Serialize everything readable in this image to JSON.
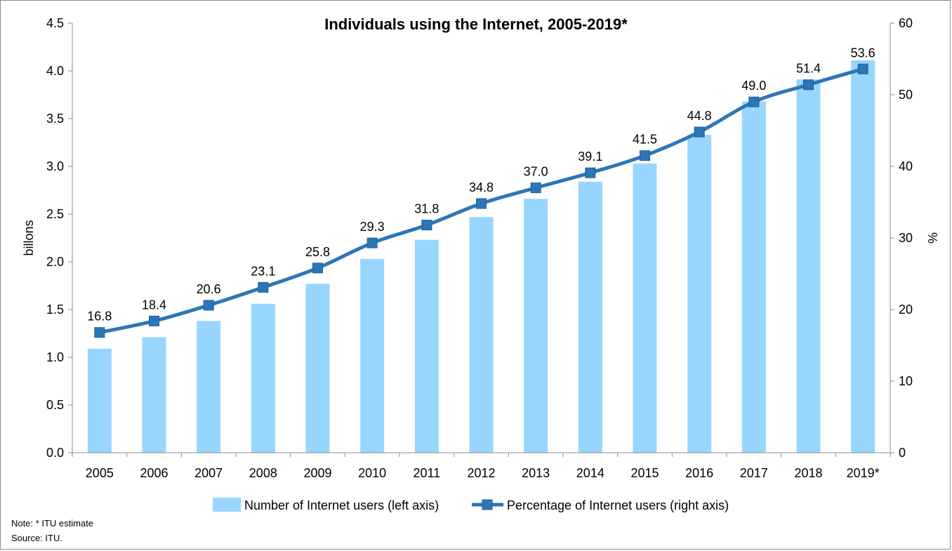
{
  "chart_data": {
    "type": "bar",
    "title": "Individuals using the Internet, 2005-2019*",
    "categories": [
      "2005",
      "2006",
      "2007",
      "2008",
      "2009",
      "2010",
      "2011",
      "2012",
      "2013",
      "2014",
      "2015",
      "2016",
      "2017",
      "2018",
      "2019*"
    ],
    "series": [
      {
        "name": "Number of Internet users (left axis)",
        "type": "bar",
        "axis": "left",
        "color": "#99d6ff",
        "values": [
          1.09,
          1.21,
          1.38,
          1.56,
          1.77,
          2.03,
          2.23,
          2.47,
          2.66,
          2.84,
          3.03,
          3.33,
          3.68,
          3.91,
          4.11
        ]
      },
      {
        "name": "Percentage of Internet users (right axis)",
        "type": "line",
        "axis": "right",
        "color": "#2e75b6",
        "marker": "square",
        "values": [
          16.8,
          18.4,
          20.6,
          23.1,
          25.8,
          29.3,
          31.8,
          34.8,
          37.0,
          39.1,
          41.5,
          44.8,
          49.0,
          51.4,
          53.6
        ],
        "labels": [
          "16.8",
          "18.4",
          "20.6",
          "23.1",
          "25.8",
          "29.3",
          "31.8",
          "34.8",
          "37.0",
          "39.1",
          "41.5",
          "44.8",
          "49.0",
          "51.4",
          "53.6"
        ]
      }
    ],
    "ylabel": "billons",
    "y2label": "%",
    "ylim": [
      0,
      4.5
    ],
    "y2lim": [
      0,
      60
    ],
    "yticks": [
      "0.0",
      "0.5",
      "1.0",
      "1.5",
      "2.0",
      "2.5",
      "3.0",
      "3.5",
      "4.0",
      "4.5"
    ],
    "y2ticks": [
      "0",
      "10",
      "20",
      "30",
      "40",
      "50",
      "60"
    ],
    "grid": false,
    "legend_position": "bottom"
  },
  "notes": {
    "note": "Note: * ITU estimate",
    "source": "Source: ITU."
  }
}
